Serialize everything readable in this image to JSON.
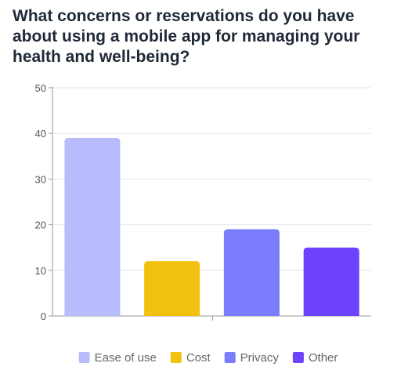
{
  "chart_data": {
    "type": "bar",
    "title": "What concerns or reservations do you have about using a mobile app for managing your health and well-being?",
    "categories": [
      "Ease of use",
      "Cost",
      "Privacy",
      "Other"
    ],
    "values": [
      39,
      12,
      19,
      15
    ],
    "colors": [
      "#b8bcfc",
      "#f2c10f",
      "#7a7dfc",
      "#6e43fc"
    ],
    "ylim": [
      0,
      50
    ],
    "yticks": [
      "0",
      "10",
      "20",
      "30",
      "40",
      "50"
    ],
    "grid": true,
    "legend": {
      "position": "bottom",
      "items": [
        "Ease of use",
        "Cost",
        "Privacy",
        "Other"
      ]
    }
  }
}
